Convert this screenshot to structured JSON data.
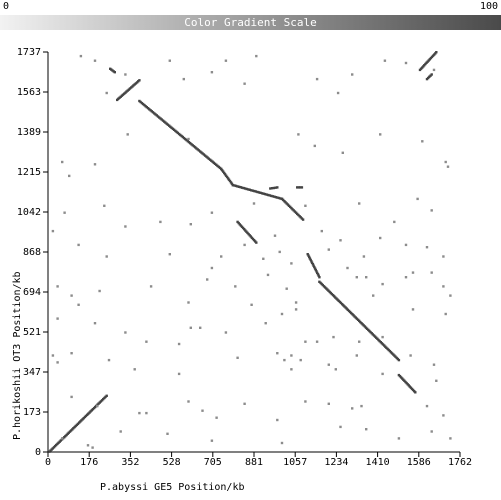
{
  "scale": {
    "min_label": "0",
    "max_label": "100",
    "title": "Color Gradient Scale"
  },
  "chart_data": {
    "type": "scatter",
    "title": "",
    "xlabel": "P.abyssi GE5 Position/kb",
    "ylabel": "P.horikoshii OT3 Position/kb",
    "xlim": [
      0,
      1762
    ],
    "ylim": [
      0,
      1737
    ],
    "x_ticks": [
      "0",
      "176",
      "352",
      "528",
      "705",
      "881",
      "1057",
      "1234",
      "1410",
      "1586",
      "1762"
    ],
    "y_ticks": [
      "0",
      "173",
      "347",
      "521",
      "694",
      "868",
      "1042",
      "1215",
      "1389",
      "1563",
      "1737"
    ],
    "grid": false,
    "legend": "none",
    "colors": {
      "dots": "#444444",
      "scatter_dots": "#8c8c8c",
      "axis": "#000000"
    },
    "segments": [
      {
        "x1": 5,
        "y1": 2,
        "x2": 250,
        "y2": 245
      },
      {
        "x1": 265,
        "y1": 1665,
        "x2": 285,
        "y2": 1650
      },
      {
        "x1": 295,
        "y1": 1530,
        "x2": 390,
        "y2": 1615
      },
      {
        "x1": 390,
        "y1": 1525,
        "x2": 740,
        "y2": 1230
      },
      {
        "x1": 740,
        "y1": 1230,
        "x2": 790,
        "y2": 1160
      },
      {
        "x1": 790,
        "y1": 1160,
        "x2": 1000,
        "y2": 1100
      },
      {
        "x1": 1000,
        "y1": 1100,
        "x2": 1090,
        "y2": 1010
      },
      {
        "x1": 810,
        "y1": 1000,
        "x2": 890,
        "y2": 910
      },
      {
        "x1": 1110,
        "y1": 860,
        "x2": 1160,
        "y2": 760
      },
      {
        "x1": 1160,
        "y1": 740,
        "x2": 1500,
        "y2": 400
      },
      {
        "x1": 1500,
        "y1": 335,
        "x2": 1570,
        "y2": 260
      },
      {
        "x1": 1590,
        "y1": 1660,
        "x2": 1660,
        "y2": 1737
      },
      {
        "x1": 1620,
        "y1": 1620,
        "x2": 1640,
        "y2": 1640
      },
      {
        "x1": 950,
        "y1": 1145,
        "x2": 980,
        "y2": 1150
      },
      {
        "x1": 1065,
        "y1": 1150,
        "x2": 1085,
        "y2": 1150
      }
    ],
    "points": [
      [
        140,
        1720
      ],
      [
        200,
        1700
      ],
      [
        250,
        1560
      ],
      [
        330,
        1640
      ],
      [
        520,
        1700
      ],
      [
        580,
        1620
      ],
      [
        700,
        1650
      ],
      [
        760,
        1700
      ],
      [
        840,
        1600
      ],
      [
        890,
        1720
      ],
      [
        1150,
        1620
      ],
      [
        1240,
        1560
      ],
      [
        1300,
        1640
      ],
      [
        1440,
        1700
      ],
      [
        1530,
        1690
      ],
      [
        1650,
        1660
      ],
      [
        90,
        1200
      ],
      [
        60,
        1260
      ],
      [
        200,
        1250
      ],
      [
        340,
        1380
      ],
      [
        600,
        1360
      ],
      [
        1070,
        1380
      ],
      [
        1260,
        1300
      ],
      [
        1420,
        1380
      ],
      [
        1600,
        1350
      ],
      [
        1700,
        1260
      ],
      [
        1710,
        1240
      ],
      [
        1140,
        1330
      ],
      [
        70,
        1040
      ],
      [
        240,
        1070
      ],
      [
        330,
        980
      ],
      [
        480,
        1000
      ],
      [
        610,
        990
      ],
      [
        700,
        1040
      ],
      [
        880,
        1080
      ],
      [
        970,
        940
      ],
      [
        1170,
        960
      ],
      [
        1250,
        920
      ],
      [
        1330,
        1080
      ],
      [
        1480,
        1000
      ],
      [
        1580,
        1100
      ],
      [
        1640,
        1050
      ],
      [
        1100,
        1070
      ],
      [
        20,
        960
      ],
      [
        130,
        900
      ],
      [
        250,
        850
      ],
      [
        520,
        860
      ],
      [
        700,
        800
      ],
      [
        740,
        850
      ],
      [
        840,
        900
      ],
      [
        920,
        840
      ],
      [
        990,
        870
      ],
      [
        1040,
        820
      ],
      [
        1200,
        880
      ],
      [
        1280,
        800
      ],
      [
        1350,
        850
      ],
      [
        1420,
        930
      ],
      [
        1530,
        900
      ],
      [
        1620,
        890
      ],
      [
        1690,
        850
      ],
      [
        1560,
        780
      ],
      [
        40,
        720
      ],
      [
        100,
        680
      ],
      [
        130,
        640
      ],
      [
        220,
        700
      ],
      [
        440,
        720
      ],
      [
        600,
        650
      ],
      [
        680,
        750
      ],
      [
        800,
        720
      ],
      [
        870,
        640
      ],
      [
        940,
        770
      ],
      [
        1020,
        710
      ],
      [
        1060,
        650
      ],
      [
        1320,
        760
      ],
      [
        1360,
        760
      ],
      [
        1390,
        680
      ],
      [
        1430,
        730
      ],
      [
        1530,
        760
      ],
      [
        1640,
        780
      ],
      [
        1690,
        720
      ],
      [
        1720,
        680
      ],
      [
        40,
        580
      ],
      [
        200,
        560
      ],
      [
        330,
        520
      ],
      [
        420,
        480
      ],
      [
        560,
        470
      ],
      [
        610,
        540
      ],
      [
        650,
        540
      ],
      [
        760,
        520
      ],
      [
        930,
        560
      ],
      [
        1000,
        600
      ],
      [
        1060,
        620
      ],
      [
        1100,
        480
      ],
      [
        1150,
        480
      ],
      [
        1220,
        500
      ],
      [
        1330,
        480
      ],
      [
        1430,
        500
      ],
      [
        1560,
        620
      ],
      [
        1700,
        600
      ],
      [
        20,
        420
      ],
      [
        40,
        390
      ],
      [
        100,
        430
      ],
      [
        260,
        400
      ],
      [
        370,
        360
      ],
      [
        560,
        340
      ],
      [
        810,
        410
      ],
      [
        980,
        430
      ],
      [
        1010,
        400
      ],
      [
        1040,
        420
      ],
      [
        1040,
        360
      ],
      [
        1080,
        400
      ],
      [
        1200,
        380
      ],
      [
        1230,
        360
      ],
      [
        1320,
        420
      ],
      [
        1430,
        340
      ],
      [
        1550,
        420
      ],
      [
        1650,
        380
      ],
      [
        1660,
        310
      ],
      [
        100,
        240
      ],
      [
        210,
        200
      ],
      [
        390,
        170
      ],
      [
        420,
        170
      ],
      [
        600,
        220
      ],
      [
        660,
        180
      ],
      [
        720,
        150
      ],
      [
        840,
        210
      ],
      [
        980,
        140
      ],
      [
        1100,
        220
      ],
      [
        1200,
        210
      ],
      [
        1300,
        190
      ],
      [
        1340,
        200
      ],
      [
        1620,
        200
      ],
      [
        1690,
        160
      ],
      [
        60,
        60
      ],
      [
        170,
        30
      ],
      [
        190,
        20
      ],
      [
        310,
        90
      ],
      [
        510,
        80
      ],
      [
        700,
        50
      ],
      [
        1000,
        40
      ],
      [
        1250,
        110
      ],
      [
        1360,
        100
      ],
      [
        1500,
        60
      ],
      [
        1640,
        90
      ],
      [
        1720,
        60
      ]
    ]
  }
}
